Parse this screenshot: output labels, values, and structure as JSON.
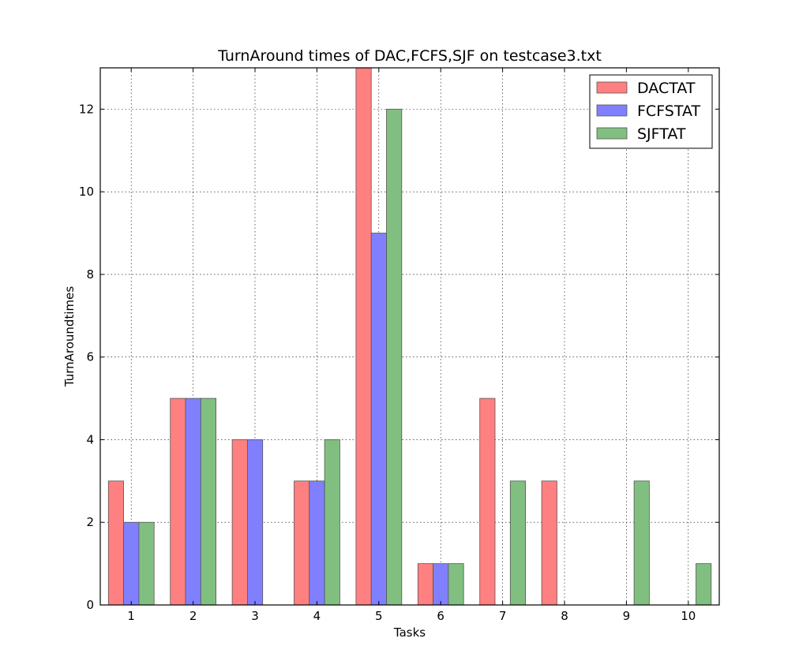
{
  "chart_data": {
    "type": "bar",
    "title": "TurnAround times of DAC,FCFS,SJF on testcase3.txt",
    "xlabel": "Tasks",
    "ylabel": "TurnAroundtimes",
    "categories": [
      "1",
      "2",
      "3",
      "4",
      "5",
      "6",
      "7",
      "8",
      "9",
      "10"
    ],
    "series": [
      {
        "name": "DACTAT",
        "color": "#ff8080",
        "values": [
          3,
          5,
          4,
          3,
          13,
          1,
          5,
          3,
          0,
          0
        ]
      },
      {
        "name": "FCFSTAT",
        "color": "#8080ff",
        "values": [
          2,
          5,
          4,
          3,
          9,
          1,
          0,
          0,
          0,
          0
        ]
      },
      {
        "name": "SJFTAT",
        "color": "#80bf80",
        "values": [
          2,
          5,
          0,
          4,
          12,
          1,
          3,
          0,
          3,
          1
        ]
      }
    ],
    "ylim": [
      0,
      13
    ],
    "yticks": [
      0,
      2,
      4,
      6,
      8,
      10,
      12
    ],
    "grid": true,
    "legend_position": "top-right"
  }
}
